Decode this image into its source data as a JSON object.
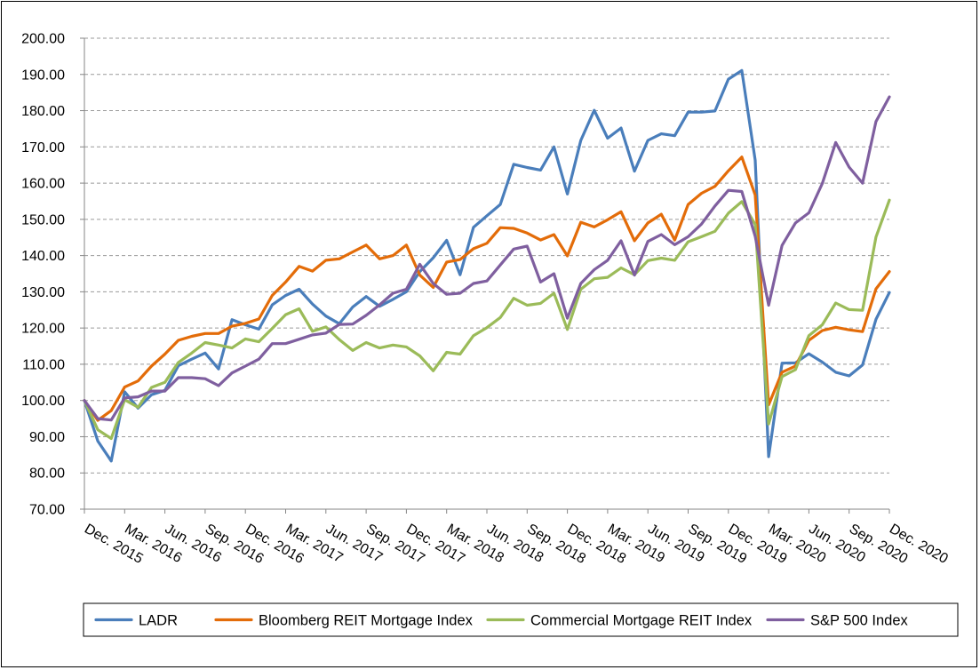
{
  "chart_data": {
    "type": "line",
    "title": "",
    "xlabel": "",
    "ylabel": "",
    "ylim": [
      70,
      200
    ],
    "ytick_step": 10,
    "ytick_labels": [
      "70.00",
      "80.00",
      "90.00",
      "100.00",
      "110.00",
      "120.00",
      "130.00",
      "140.00",
      "150.00",
      "160.00",
      "170.00",
      "180.00",
      "190.00",
      "200.00"
    ],
    "grid": "horizontal dashed",
    "legend_position": "bottom",
    "xtick_labels": [
      "Dec. 2015",
      "Mar. 2016",
      "Jun. 2016",
      "Sep. 2016",
      "Dec. 2016",
      "Mar. 2017",
      "Jun. 2017",
      "Sep. 2017",
      "Dec. 2017",
      "Mar. 2018",
      "Jun. 2018",
      "Sep. 2018",
      "Dec. 2018",
      "Mar. 2019",
      "Jun. 2019",
      "Sep. 2019",
      "Dec. 2019",
      "Mar. 2020",
      "Jun. 2020",
      "Sep. 2020",
      "Dec. 2020"
    ],
    "x_points_per_tick": 3,
    "series": [
      {
        "name": "LADR",
        "color": "#4A7EBB",
        "values": [
          100.0,
          88.8,
          83.3,
          102.4,
          97.9,
          101.6,
          102.8,
          109.6,
          111.4,
          113.1,
          108.7,
          122.3,
          120.9,
          119.7,
          126.4,
          129.0,
          130.7,
          126.6,
          123.3,
          121.2,
          125.8,
          128.7,
          126.0,
          127.9,
          130.0,
          135.6,
          139.4,
          144.2,
          134.7,
          147.8,
          151.0,
          154.1,
          165.2,
          164.3,
          163.6,
          170.0,
          157.0,
          171.8,
          180.1,
          172.4,
          175.2,
          163.3,
          171.8,
          173.6,
          173.1,
          179.6,
          179.6,
          179.9,
          188.7,
          191.1,
          166.3,
          84.5,
          110.3,
          110.4,
          112.9,
          110.6,
          107.8,
          106.8,
          109.8,
          122.4,
          129.8
        ]
      },
      {
        "name": "Bloomberg REIT Mortgage Index",
        "color": "#E36C09",
        "values": [
          100.0,
          94.5,
          97.2,
          103.7,
          105.4,
          109.5,
          112.8,
          116.6,
          117.7,
          118.5,
          118.5,
          120.5,
          121.3,
          122.5,
          129.0,
          132.7,
          137.0,
          135.7,
          138.7,
          139.1,
          141.0,
          142.9,
          139.1,
          140.0,
          142.9,
          134.6,
          131.2,
          138.2,
          138.9,
          141.9,
          143.4,
          147.7,
          147.5,
          146.2,
          144.3,
          145.8,
          139.9,
          149.2,
          147.9,
          149.9,
          152.1,
          144.1,
          149.0,
          151.4,
          144.3,
          154.1,
          157.2,
          159.1,
          163.4,
          167.2,
          156.7,
          98.8,
          107.8,
          109.5,
          116.6,
          119.3,
          120.2,
          119.5,
          119.0,
          130.8,
          135.6
        ]
      },
      {
        "name": "Commercial Mortgage REIT Index",
        "color": "#9BBB59",
        "values": [
          100.0,
          91.9,
          89.5,
          100.2,
          98.1,
          103.6,
          105.0,
          110.5,
          113.1,
          116.0,
          115.3,
          114.5,
          117.0,
          116.2,
          119.9,
          123.7,
          125.3,
          119.1,
          120.3,
          116.8,
          113.8,
          116.0,
          114.5,
          115.3,
          114.8,
          112.3,
          108.2,
          113.3,
          112.8,
          117.9,
          120.1,
          122.9,
          128.2,
          126.3,
          126.8,
          129.6,
          119.6,
          130.7,
          133.6,
          134.0,
          136.6,
          134.7,
          138.6,
          139.3,
          138.7,
          143.8,
          145.2,
          146.7,
          151.7,
          154.9,
          148.6,
          93.5,
          106.6,
          108.5,
          117.9,
          120.9,
          126.9,
          125.1,
          124.9,
          145.1,
          155.3
        ]
      },
      {
        "name": "S&P 500 Index",
        "color": "#7F5F9F",
        "values": [
          100.0,
          95.0,
          94.6,
          100.7,
          101.0,
          102.6,
          102.6,
          106.3,
          106.3,
          106.0,
          104.1,
          107.6,
          109.5,
          111.4,
          115.7,
          115.7,
          116.9,
          118.1,
          118.6,
          121.0,
          121.1,
          123.5,
          126.4,
          129.6,
          130.7,
          137.6,
          132.3,
          129.3,
          129.6,
          132.3,
          133.0,
          137.4,
          141.8,
          142.6,
          132.7,
          135.0,
          122.7,
          132.3,
          136.1,
          138.7,
          144.1,
          134.6,
          143.9,
          145.8,
          143.0,
          145.2,
          148.7,
          153.7,
          158.0,
          157.7,
          145.3,
          126.3,
          142.8,
          149.0,
          151.8,
          159.9,
          171.2,
          164.4,
          160.0,
          177.0,
          183.8
        ]
      }
    ]
  }
}
